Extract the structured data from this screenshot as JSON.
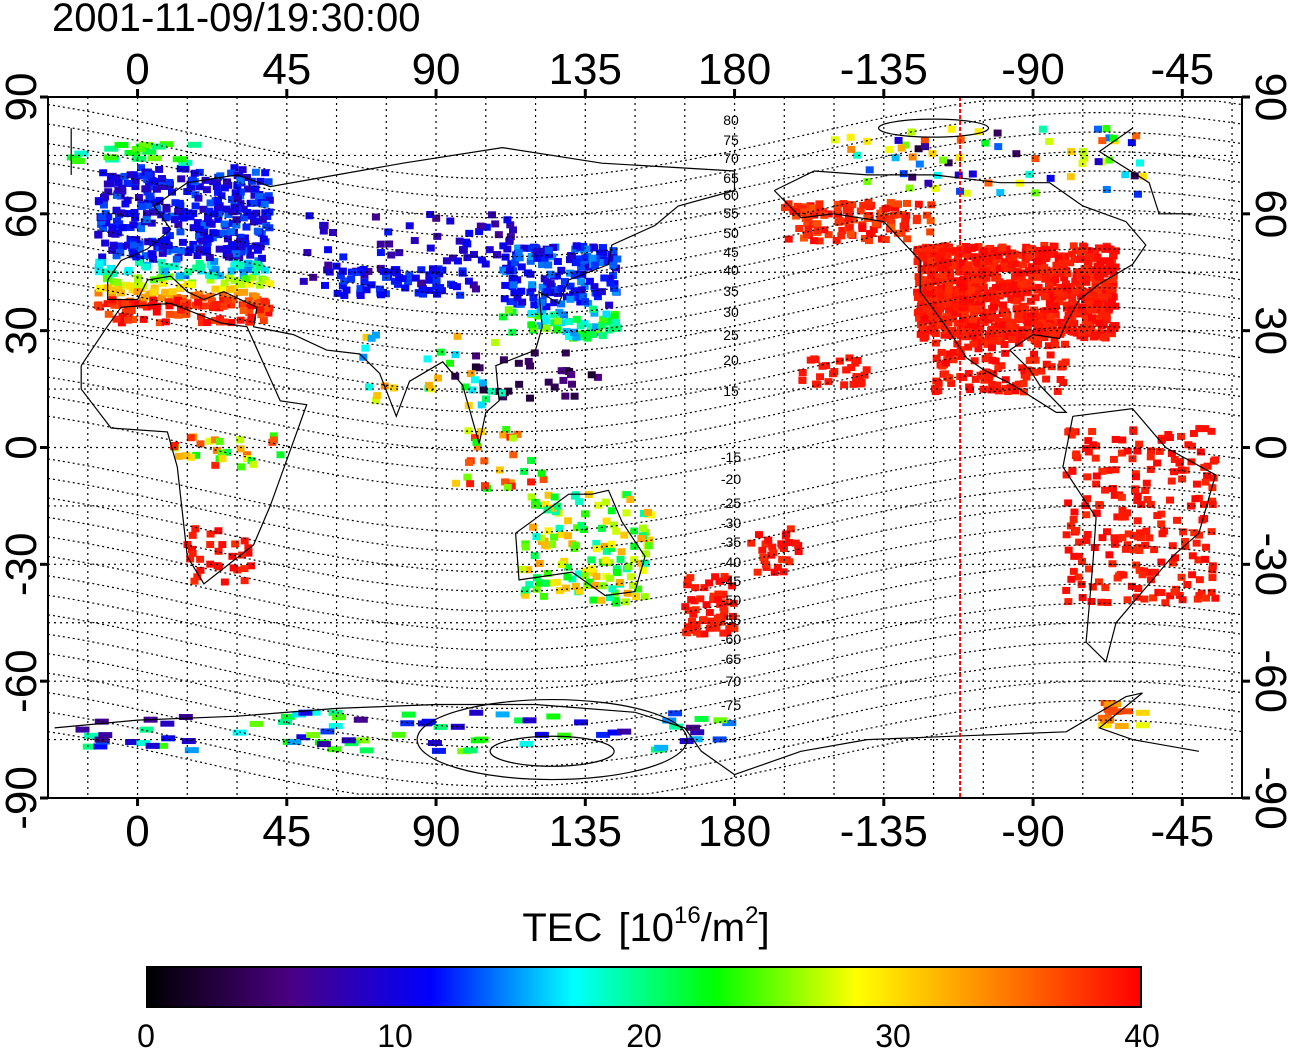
{
  "title": "2001-11-09/19:30:00",
  "map": {
    "type": "equirectangular world map, dateline-centered, with TEC data cells",
    "x_ticks": [
      "0",
      "45",
      "90",
      "135",
      "180",
      "-135",
      "-90",
      "-45"
    ],
    "y_ticks": [
      "90",
      "60",
      "30",
      "0",
      "-30",
      "-60",
      "-90"
    ],
    "contour_labels": [
      "80",
      "75",
      "70",
      "65",
      "60",
      "55",
      "50",
      "45",
      "40",
      "35",
      "30",
      "25",
      "20",
      "15",
      "-15",
      "-20",
      "-25",
      "-30",
      "-35",
      "-40",
      "-45",
      "-50",
      "-55",
      "-60",
      "-65",
      "-70",
      "-75"
    ],
    "terminator_longitude": -112,
    "colors": {
      "terminator": "#ff0000",
      "coast": "#000000",
      "grid": "#000000"
    }
  },
  "colorbar": {
    "label": "TEC",
    "unit_base": "[10",
    "unit_exp1": "16",
    "unit_mid": "/m",
    "unit_exp2": "2",
    "unit_end": "]",
    "ticks": [
      "0",
      "10",
      "20",
      "30",
      "40"
    ],
    "min": 0,
    "max": 40,
    "gradient": [
      "#000000",
      "#4b0082",
      "#0000ff",
      "#00ffff",
      "#00ff00",
      "#ffff00",
      "#ff8000",
      "#ff0000"
    ]
  }
}
